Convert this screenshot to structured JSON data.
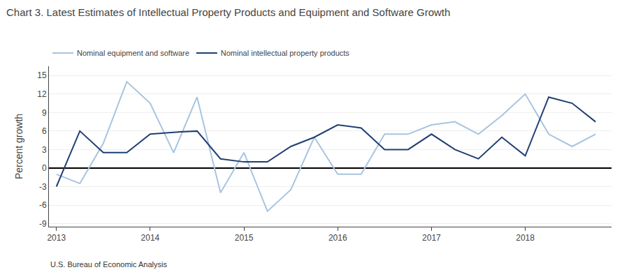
{
  "chart_data": {
    "type": "line",
    "title": "Chart 3. Latest Estimates of Intellectual Property Products and Equipment and Software Growth",
    "ylabel": "Percent growth",
    "annotations": [
      "U.S. Bureau of Economic Analysis"
    ],
    "x": [
      2013.0,
      2013.25,
      2013.5,
      2013.75,
      2014.0,
      2014.25,
      2014.5,
      2014.75,
      2015.0,
      2015.25,
      2015.5,
      2015.75,
      2016.0,
      2016.25,
      2016.5,
      2016.75,
      2017.0,
      2017.25,
      2017.5,
      2017.75,
      2018.0,
      2018.25,
      2018.5,
      2018.75
    ],
    "series": [
      {
        "name": "Nominal equipment and software",
        "color": "#a8c4e0",
        "values": [
          -1.0,
          -2.5,
          4.0,
          14.0,
          10.5,
          2.5,
          11.5,
          -4.0,
          2.5,
          -7.0,
          -3.5,
          5.0,
          -1.0,
          -1.0,
          5.5,
          5.5,
          7.0,
          7.5,
          5.5,
          8.5,
          12.0,
          5.5,
          3.5,
          5.5
        ]
      },
      {
        "name": "Nominal intellectual property products",
        "color": "#1f3f73",
        "values": [
          -3.0,
          6.0,
          2.5,
          2.5,
          5.5,
          5.8,
          6.0,
          1.5,
          1.0,
          1.0,
          3.5,
          5.0,
          7.0,
          6.5,
          3.0,
          3.0,
          5.5,
          3.0,
          1.5,
          5.0,
          2.0,
          11.5,
          10.5,
          7.5
        ]
      }
    ],
    "xlim": [
      2012.92,
      2018.92
    ],
    "xticks": [
      2013,
      2014,
      2015,
      2016,
      2017,
      2018
    ],
    "ylim": [
      -9.5,
      16.5
    ],
    "yticks": [
      -9,
      -6,
      -3,
      0,
      3,
      6,
      9,
      12,
      15
    ],
    "grid": true,
    "legend": "top"
  }
}
